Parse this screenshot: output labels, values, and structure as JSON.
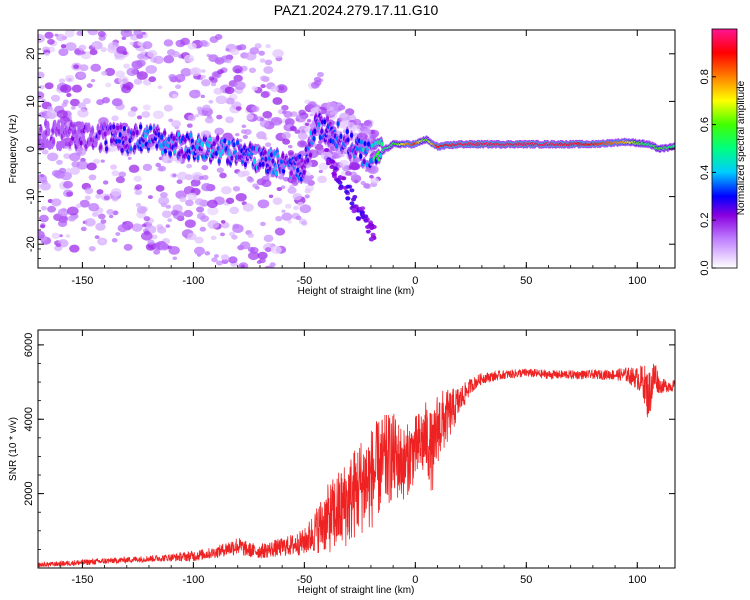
{
  "chart_data": [
    {
      "type": "heatmap",
      "title": "PAZ1.2024.279.17.11.G10",
      "xlabel": "Height of straight line (km)",
      "ylabel": "Frequency (Hz)",
      "xlim": [
        -170,
        117
      ],
      "ylim": [
        -25,
        25
      ],
      "xticks": [
        -150,
        -100,
        -50,
        0,
        50,
        100
      ],
      "yticks": [
        -20,
        -10,
        0,
        10,
        20
      ],
      "colorbar": {
        "label": "Normalized spectral amplitude",
        "range": [
          0,
          1
        ],
        "ticks": [
          0.0,
          0.2,
          0.4,
          0.6,
          0.8
        ],
        "colors": [
          "#ffffff",
          "#a020f0",
          "#0000ff",
          "#00ffff",
          "#00ff00",
          "#ffff00",
          "#ff8000",
          "#ff0000",
          "#ff1493"
        ]
      },
      "ridge": {
        "height_km": [
          -170,
          -150,
          -130,
          -120,
          -110,
          -100,
          -90,
          -80,
          -70,
          -60,
          -50,
          -45,
          -40,
          -35,
          -30,
          -25,
          -20,
          -15,
          -10,
          0,
          2,
          5,
          8,
          10,
          20,
          40,
          60,
          80,
          95,
          105,
          110,
          117
        ],
        "frequency_hz": [
          3,
          3,
          2,
          2.5,
          1,
          0.5,
          0,
          -1,
          -2,
          -3,
          -4,
          5,
          4,
          3,
          1,
          -0.5,
          -1,
          -0.5,
          1,
          1,
          1.5,
          2,
          1,
          0.5,
          1,
          1,
          1,
          1,
          1.5,
          1,
          0,
          0.5
        ],
        "amplitude": [
          0.15,
          0.2,
          0.3,
          0.35,
          0.35,
          0.35,
          0.35,
          0.35,
          0.35,
          0.35,
          0.3,
          0.35,
          0.3,
          0.3,
          0.3,
          0.35,
          0.45,
          0.5,
          0.55,
          0.9,
          0.7,
          0.6,
          0.75,
          0.9,
          0.95,
          0.95,
          0.95,
          0.9,
          0.75,
          0.5,
          0.6,
          0.5
        ]
      }
    },
    {
      "type": "line",
      "title": "",
      "xlabel": "Height of straight line (km)",
      "ylabel": "SNR (10 * v/v)",
      "xlim": [
        -170,
        117
      ],
      "ylim": [
        0,
        6400
      ],
      "xticks": [
        -150,
        -100,
        -50,
        0,
        50,
        100
      ],
      "yticks": [
        2000,
        4000,
        6000
      ],
      "series": [
        {
          "color": "#ee2222",
          "x": [
            -170,
            -150,
            -130,
            -110,
            -100,
            -90,
            -85,
            -80,
            -75,
            -70,
            -60,
            -55,
            -50,
            -45,
            -40,
            -35,
            -30,
            -25,
            -20,
            -15,
            -10,
            -5,
            0,
            5,
            8,
            10,
            12,
            15,
            20,
            25,
            30,
            40,
            50,
            60,
            70,
            80,
            90,
            95,
            100,
            103,
            105,
            108,
            110,
            117
          ],
          "y": [
            80,
            150,
            220,
            280,
            320,
            420,
            520,
            600,
            480,
            450,
            560,
            620,
            700,
            1000,
            1300,
            1500,
            1800,
            2200,
            2400,
            2800,
            3000,
            2800,
            3200,
            3500,
            3000,
            3800,
            3900,
            4100,
            4500,
            4900,
            5100,
            5200,
            5250,
            5200,
            5200,
            5200,
            5200,
            5200,
            5100,
            5000,
            4600,
            5200,
            4900,
            4900
          ],
          "noise": [
            60,
            80,
            80,
            100,
            150,
            150,
            200,
            250,
            200,
            200,
            250,
            300,
            350,
            600,
            900,
            1100,
            1200,
            1300,
            1400,
            1300,
            1200,
            1000,
            900,
            1000,
            1100,
            1000,
            900,
            700,
            400,
            200,
            150,
            120,
            120,
            120,
            120,
            120,
            150,
            200,
            300,
            500,
            700,
            500,
            200,
            150
          ]
        }
      ]
    }
  ]
}
